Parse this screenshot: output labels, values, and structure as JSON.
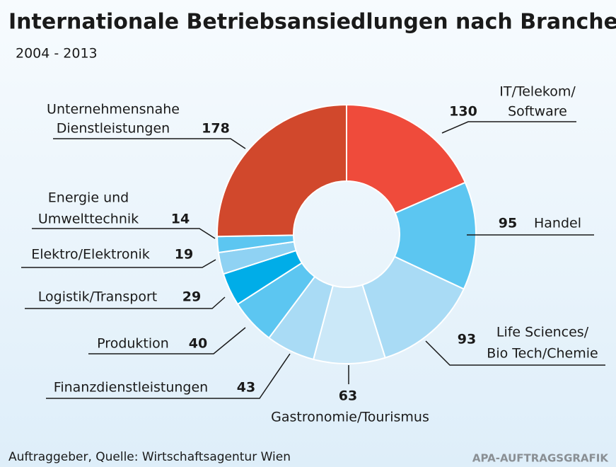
{
  "chart_data": {
    "type": "donut",
    "title": "Internationale Betriebsansiedlungen nach Branchen",
    "subtitle": "2004 - 2013",
    "categories": [
      [
        "IT/Telekom/",
        "Software"
      ],
      [
        "Handel"
      ],
      [
        "Life Sciences/",
        "Bio Tech/Chemie"
      ],
      [
        "Gastronomie/Tourismus"
      ],
      [
        "Finanzdienstleistungen"
      ],
      [
        "Produktion"
      ],
      [
        "Logistik/Transport"
      ],
      [
        "Elektro/Elektronik"
      ],
      [
        "Energie und",
        "Umwelttechnik"
      ],
      [
        "Unternehmensnahe",
        "Dienstleistungen"
      ]
    ],
    "values": [
      130,
      95,
      93,
      63,
      43,
      40,
      29,
      19,
      14,
      178
    ],
    "colors": [
      "#ef4b3b",
      "#5cc6f1",
      "#a9dbf5",
      "#cbe8f8",
      "#a9dbf5",
      "#5cc6f1",
      "#00ade8",
      "#8fd2f3",
      "#5cc6f1",
      "#d1482c"
    ],
    "source": "Auftraggeber, Quelle: Wirtschaftsagentur Wien",
    "credit": "APA-AUFTRAGSGRAFIK"
  }
}
